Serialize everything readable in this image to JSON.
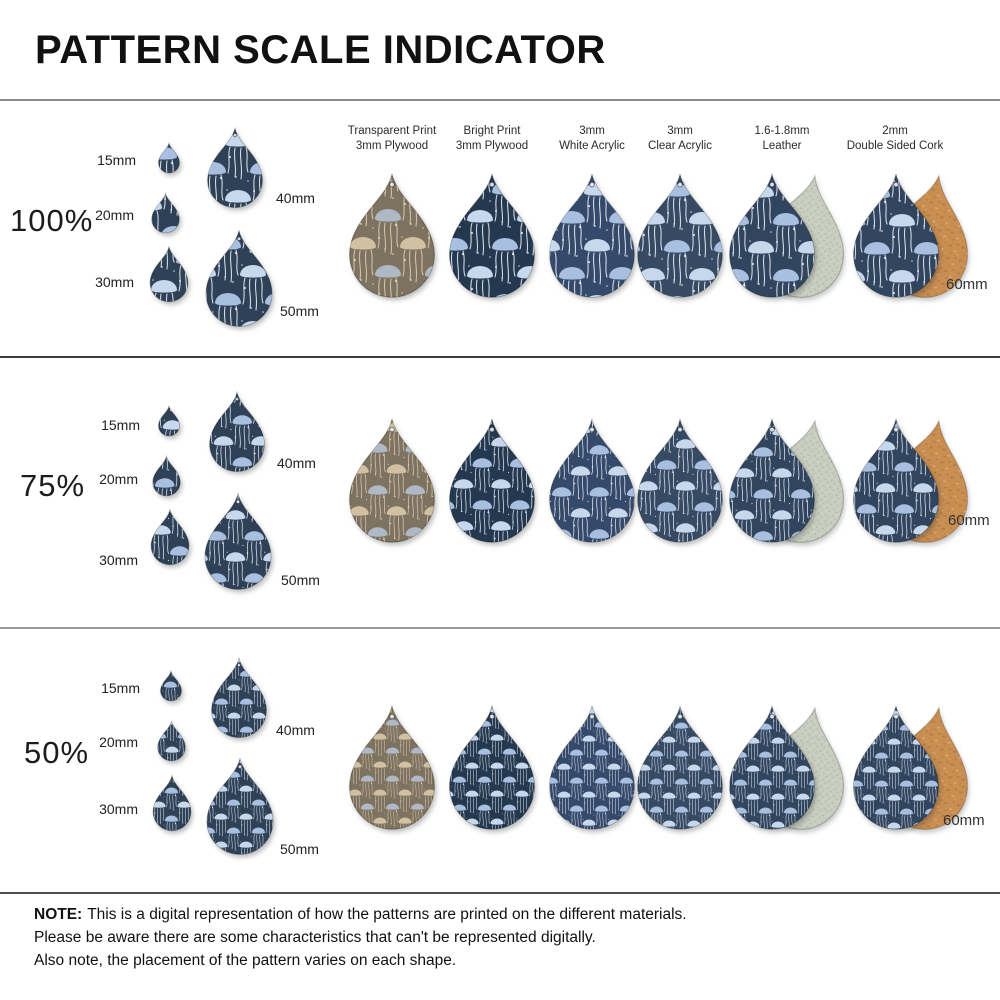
{
  "title": "PATTERN SCALE INDICATOR",
  "columns": [
    {
      "line1": "Transparent Print",
      "line2": "3mm Plywood"
    },
    {
      "line1": "Bright Print",
      "line2": "3mm Plywood"
    },
    {
      "line1": "3mm",
      "line2": "White Acrylic"
    },
    {
      "line1": "3mm",
      "line2": "Clear Acrylic"
    },
    {
      "line1": "1.6-1.8mm",
      "line2": "Leather"
    },
    {
      "line1": "2mm",
      "line2": "Double Sided Cork"
    }
  ],
  "rows": [
    {
      "scale_label": "100%",
      "sizes": [
        "15mm",
        "20mm",
        "30mm",
        "40mm",
        "50mm"
      ],
      "material_size_label": "60mm"
    },
    {
      "scale_label": "75%",
      "sizes": [
        "15mm",
        "20mm",
        "30mm",
        "40mm",
        "50mm"
      ],
      "material_size_label": "60mm"
    },
    {
      "scale_label": "50%",
      "sizes": [
        "15mm",
        "20mm",
        "30mm",
        "40mm",
        "50mm"
      ],
      "material_size_label": "60mm"
    }
  ],
  "note": {
    "label": "NOTE:",
    "line1": "This is a digital representation of how the patterns are printed on the different materials.",
    "line2": "Please be aware there are some characteristics that can't be represented digitally.",
    "line3": "Also note, the placement of the pattern varies on each shape."
  },
  "colors": {
    "pattern_base_navy": "#31455E",
    "pattern_base_bright": "#24384F",
    "jellyfish_blue": "#B9CBE4",
    "plywood_transparent": "#7E7260",
    "leather": "#C9CDC0",
    "cork": "#C88E52"
  }
}
